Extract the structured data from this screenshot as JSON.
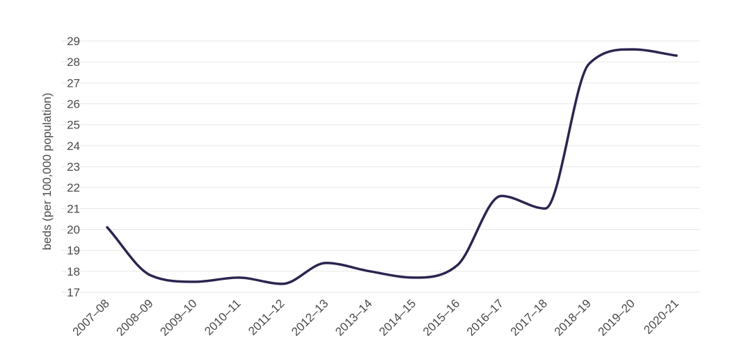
{
  "chart_data": {
    "type": "line",
    "title": "",
    "xlabel": "",
    "ylabel": "beds (per 100,000 population)",
    "categories": [
      "2007–08",
      "2008–09",
      "2009–10",
      "2010–11",
      "2011–12",
      "2012–13",
      "2013–14",
      "2014–15",
      "2015–16",
      "2016–17",
      "2017–18",
      "2018–19",
      "2019–20",
      "2020-21"
    ],
    "series": [
      {
        "values": [
          20.1,
          17.8,
          17.5,
          17.7,
          17.4,
          18.4,
          18.0,
          17.7,
          18.3,
          21.6,
          21.0,
          27.9,
          28.6,
          28.3
        ]
      }
    ],
    "ylim": [
      17,
      29
    ],
    "yticks": [
      "17",
      "18",
      "19",
      "20",
      "21",
      "22",
      "23",
      "24",
      "25",
      "26",
      "27",
      "28",
      "29"
    ],
    "grid": true,
    "legend": "none",
    "colors": {
      "line": "#2b2550",
      "grid": "#e6e6e6",
      "text": "#4a4a4a"
    }
  }
}
